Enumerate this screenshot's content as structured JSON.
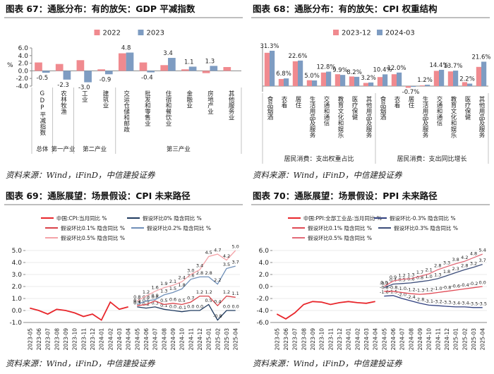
{
  "chart_data": [
    {
      "type": "bar",
      "title": "图表 67：通胀分布：有的放矢：GDP 平减指数",
      "source": "资料来源：Wind，iFinD，中信建投证券",
      "y_label": "%",
      "categories": [
        "GDP平减指数",
        "农林牧渔",
        "工业",
        "建筑业",
        "交运仓储和邮政",
        "批发和零售业",
        "住宿和餐饮业",
        "金融业",
        "房地产业",
        "其他服务业"
      ],
      "groups": [
        "总体",
        "第一产业",
        "第二产业",
        "第三产业"
      ],
      "series": [
        {
          "name": "2022",
          "color": "#f08a8f",
          "values": [
            2.2,
            1.8,
            2.8,
            0.4,
            4.6,
            2.2,
            1.5,
            0.4,
            -0.6,
            1.0
          ]
        },
        {
          "name": "2023",
          "color": "#7e9cc2",
          "values": [
            -0.5,
            -2.3,
            -3.0,
            -0.9,
            4.8,
            -0.4,
            3.4,
            1.1,
            1.3,
            0.0
          ],
          "value_labels": [
            "-0.5",
            "-2.3",
            "-3.0",
            "-0.9",
            "4.8",
            "-0.4",
            "3.4",
            "1.1",
            "1.3",
            null
          ]
        }
      ],
      "ylim": [
        -4,
        6
      ],
      "yticks": [
        {
          "value": -4,
          "label": "-4.0"
        },
        {
          "value": -2,
          "label": "-2.0"
        },
        {
          "value": 0,
          "label": "0.0"
        },
        {
          "value": 2,
          "label": "2.0"
        },
        {
          "value": 4,
          "label": "4.0"
        },
        {
          "value": 6,
          "label": "6.0"
        }
      ],
      "grid": false
    },
    {
      "type": "bar",
      "title": "图表 68：通胀分布：有的放矢：CPI 权重结构",
      "source": "资料来源：Wind，iFinD，中信建投证券",
      "categories": [
        "食品烟酒",
        "衣着",
        "居住",
        "生活用品及服务",
        "交通和通信",
        "教育文化和娱乐",
        "医疗保健",
        "其他用品及服务",
        "食品烟酒",
        "衣着",
        "居住",
        "生活用品及服务",
        "交通和通信",
        "教育文化和娱乐",
        "医疗保健",
        "其他用品及服务"
      ],
      "groups": [
        "居民消费：支出权重占比",
        "居民消费：支出同比增长"
      ],
      "series": [
        {
          "name": "2023-12",
          "color": "#f08a8f",
          "values": [
            29.5,
            6.3,
            22.0,
            5.2,
            12.0,
            10.5,
            8.5,
            2.8,
            8.0,
            10.5,
            -1.5,
            0.6,
            13.5,
            13.0,
            3.5,
            17.0
          ]
        },
        {
          "name": "2024-03",
          "color": "#7e9cc2",
          "values": [
            31.3,
            6.8,
            22.6,
            5.0,
            12.8,
            9.9,
            8.2,
            3.2,
            10.4,
            12.0,
            -0.7,
            1.2,
            14.4,
            13.7,
            2.2,
            21.6
          ],
          "value_labels": [
            "31.3%",
            "6.8%",
            "22.6%",
            "5.0%",
            "12.8%",
            "9.9%",
            "8.2%",
            "3.2%",
            "10.4%",
            "12.0%",
            "-0.7%",
            "1.2%",
            "14.4%",
            "13.7%",
            "2.2%",
            "21.6%"
          ]
        }
      ],
      "ylim": [
        -5,
        35
      ],
      "grid": false
    },
    {
      "type": "line",
      "title": "图表 69：通胀展望：场景假设：CPI 未来路径",
      "source": "资料来源：Wind，iFinD，中信建投证券",
      "categories": [
        "2023-05",
        "2023-06",
        "2023-07",
        "2023-08",
        "2023-09",
        "2023-10",
        "2023-11",
        "2023-12",
        "2024-01",
        "2024-02",
        "2024-03",
        "2024-04",
        "2024-05",
        "2024-06",
        "2024-07",
        "2024-08",
        "2024-09",
        "2024-10",
        "2024-11",
        "2024-12",
        "2025-01",
        "2025-02",
        "2025-03",
        "2025-04"
      ],
      "series": [
        {
          "name": "中国:CPI:当月同比 %",
          "color": "#e8262b",
          "values": [
            0.2,
            0.0,
            -0.3,
            0.1,
            0.0,
            -0.2,
            -0.5,
            -0.3,
            -0.8,
            0.7,
            0.1,
            0.3,
            null,
            null,
            null,
            null,
            null,
            null,
            null,
            null,
            null,
            null,
            null,
            null
          ]
        },
        {
          "name": "假设环比0% 隐含同比 %",
          "color": "#1f3a5f",
          "values": [
            null,
            null,
            null,
            null,
            null,
            null,
            null,
            null,
            null,
            null,
            null,
            null,
            0.3,
            0.2,
            0.3,
            0.1,
            0.0,
            -0.1,
            0.0,
            0.0,
            0.5,
            -0.8,
            0.0,
            0.0
          ],
          "value_labels": [
            null,
            null,
            null,
            null,
            null,
            null,
            null,
            null,
            null,
            null,
            null,
            null,
            "0.3",
            "0.2",
            "0.3",
            "0.1",
            "0.0",
            "-0.1",
            "0.0",
            "0.0",
            "0.5",
            "-0.8",
            "0.0",
            "0.0"
          ]
        },
        {
          "name": "假设环比0.1% 隐含同比 %",
          "color": "#d9434a",
          "values": [
            null,
            null,
            null,
            null,
            null,
            null,
            null,
            null,
            null,
            null,
            null,
            null,
            0.4,
            0.5,
            0.8,
            0.5,
            0.6,
            0.5,
            0.7,
            1.2,
            1.2,
            0.4,
            1.2,
            1.1
          ],
          "value_labels": [
            null,
            null,
            null,
            null,
            null,
            null,
            null,
            null,
            null,
            null,
            null,
            null,
            "0.4",
            "0.5",
            "0.8",
            "0.5",
            "0.6",
            "0.5",
            "0.7",
            "1.2",
            "1.2",
            "0.4",
            "1.2",
            "1.1"
          ]
        },
        {
          "name": "假设环比0.2% 隐含同比 %",
          "color": "#6f8fb8",
          "values": [
            null,
            null,
            null,
            null,
            null,
            null,
            null,
            null,
            null,
            null,
            null,
            null,
            0.5,
            0.8,
            0.9,
            1.3,
            1.5,
            1.8,
            2.6,
            2.8,
            2.8,
            2.2,
            3.5,
            3.7
          ],
          "value_labels": [
            null,
            null,
            null,
            null,
            null,
            null,
            null,
            null,
            null,
            null,
            null,
            null,
            "0.5",
            "0.8",
            "0.9",
            "1.3",
            "1.5",
            "1.8",
            "2.6",
            "2.8",
            "2.8",
            "2.2",
            "3.5",
            "3.7"
          ]
        },
        {
          "name": "假设环比0.5% 隐含同比 %",
          "color": "#f4a3a8",
          "values": [
            null,
            null,
            null,
            null,
            null,
            null,
            null,
            null,
            null,
            null,
            null,
            null,
            0.8,
            1.2,
            1.6,
            1.9,
            2.1,
            2.4,
            3.0,
            3.4,
            4.5,
            4.7,
            4.2,
            5.0
          ],
          "value_labels": [
            null,
            null,
            null,
            null,
            null,
            null,
            null,
            null,
            null,
            null,
            null,
            null,
            "0.8",
            "1.2",
            "1.6",
            "1.9",
            "2.1",
            "2.4",
            "3.0",
            "3.4",
            "4.5",
            "4.7",
            "4.2",
            "5.0"
          ]
        }
      ],
      "ylim": [
        -1,
        5
      ],
      "yticks": [
        {
          "value": -1,
          "label": "-1.0"
        },
        {
          "value": 0,
          "label": "0.0"
        },
        {
          "value": 1,
          "label": "1.0"
        },
        {
          "value": 2,
          "label": "2.0"
        },
        {
          "value": 3,
          "label": "3.0"
        },
        {
          "value": 4,
          "label": "4.0"
        },
        {
          "value": 5,
          "label": "5.0"
        }
      ],
      "grid": true
    },
    {
      "type": "line",
      "title": "图表 70：通胀展望：场景假设：PPI 未来路径",
      "source": "资料来源：Wind，iFinD，中信建投证券",
      "categories": [
        "2023-05",
        "2023-06",
        "2023-07",
        "2023-08",
        "2023-09",
        "2023-10",
        "2023-11",
        "2023-12",
        "2024-01",
        "2024-02",
        "2024-03",
        "2024-04",
        "2024-05",
        "2024-06",
        "2024-07",
        "2024-08",
        "2024-09",
        "2024-10",
        "2024-11",
        "2024-12",
        "2025-01",
        "2025-02",
        "2025-03",
        "2025-04"
      ],
      "series": [
        {
          "name": "中国:PPI:全部工业品:当月同比 %",
          "color": "#e8262b",
          "values": [
            -4.6,
            -5.4,
            -4.4,
            -3.0,
            -2.5,
            -2.6,
            -3.0,
            -2.7,
            -2.5,
            -2.7,
            -2.8,
            -2.5,
            null,
            null,
            null,
            null,
            null,
            null,
            null,
            null,
            null,
            null,
            null,
            null
          ]
        },
        {
          "name": "假设环比-0.3% 隐含同比 %",
          "color": "#2f3f7f",
          "values": [
            null,
            null,
            null,
            null,
            null,
            null,
            null,
            null,
            null,
            null,
            null,
            null,
            -1.6,
            -1.5,
            -2.0,
            -2.4,
            -2.8,
            -3.1,
            -3.2,
            -3.3,
            -3.4,
            -3.4,
            -3.5,
            -3.5
          ],
          "value_labels": [
            null,
            null,
            null,
            null,
            null,
            null,
            null,
            null,
            null,
            null,
            null,
            null,
            "-1.6",
            "-1.5",
            "-2.0",
            "-2.4",
            "-2.8",
            "-3.1",
            "-3.2",
            "-3.3",
            "-3.4",
            "-3.4",
            "-3.5",
            "-3.5"
          ]
        },
        {
          "name": "假设环比0.1% 隐含同比 %",
          "color": "#e04a55",
          "values": [
            null,
            null,
            null,
            null,
            null,
            null,
            null,
            null,
            null,
            null,
            null,
            null,
            -0.8,
            -0.8,
            -1.0,
            -1.2,
            -1.3,
            -1.2,
            -1.0,
            -0.8,
            -0.6,
            -0.4,
            -0.2,
            0.0
          ],
          "value_labels": [
            null,
            null,
            null,
            null,
            null,
            null,
            null,
            null,
            null,
            null,
            null,
            null,
            "-0.8",
            "-0.8",
            "-1.0",
            "-1.2",
            "-1.3",
            "-1.2",
            "-1.0",
            "-0.8",
            "-0.6",
            "-0.4",
            "-0.2",
            "0.0"
          ]
        },
        {
          "name": "假设环比0.3% 隐含同比 %",
          "color": "#3c4d7a",
          "values": [
            null,
            null,
            null,
            null,
            null,
            null,
            null,
            null,
            null,
            null,
            null,
            null,
            -0.2,
            0.4,
            0.5,
            0.6,
            0.8,
            1.0,
            1.3,
            1.8,
            2.3,
            2.8,
            3.2,
            3.7
          ],
          "value_labels": [
            null,
            null,
            null,
            null,
            null,
            null,
            null,
            null,
            null,
            null,
            null,
            null,
            "-0.2",
            "0.4",
            "0.5",
            "0.6",
            "0.8",
            "1.0",
            "1.3",
            "1.8",
            "2.3",
            "2.8",
            "3.2",
            "3.7"
          ]
        },
        {
          "name": "假设环比0.5% 隐含同比 %",
          "color": "#e26a78",
          "values": [
            null,
            null,
            null,
            null,
            null,
            null,
            null,
            null,
            null,
            null,
            null,
            null,
            0.0,
            0.9,
            1.2,
            1.3,
            1.7,
            2.1,
            2.8,
            3.3,
            3.8,
            4.2,
            4.8,
            5.4
          ],
          "value_labels": [
            null,
            null,
            null,
            null,
            null,
            null,
            null,
            null,
            null,
            null,
            null,
            null,
            "0.0",
            "0.9",
            "1.2",
            "1.3",
            "1.7",
            "2.1",
            "2.8",
            "3.3",
            "3.8",
            "4.2",
            "4.8",
            "5.4"
          ]
        }
      ],
      "ylim": [
        -6,
        6
      ],
      "yticks": [
        {
          "value": -6,
          "label": "-6.0"
        },
        {
          "value": -4,
          "label": "-4.0"
        },
        {
          "value": -2,
          "label": "-2.0"
        },
        {
          "value": 0,
          "label": "0.0"
        },
        {
          "value": 2,
          "label": "2.0"
        },
        {
          "value": 4,
          "label": "4.0"
        },
        {
          "value": 6,
          "label": "6.0"
        }
      ],
      "grid": true
    }
  ]
}
